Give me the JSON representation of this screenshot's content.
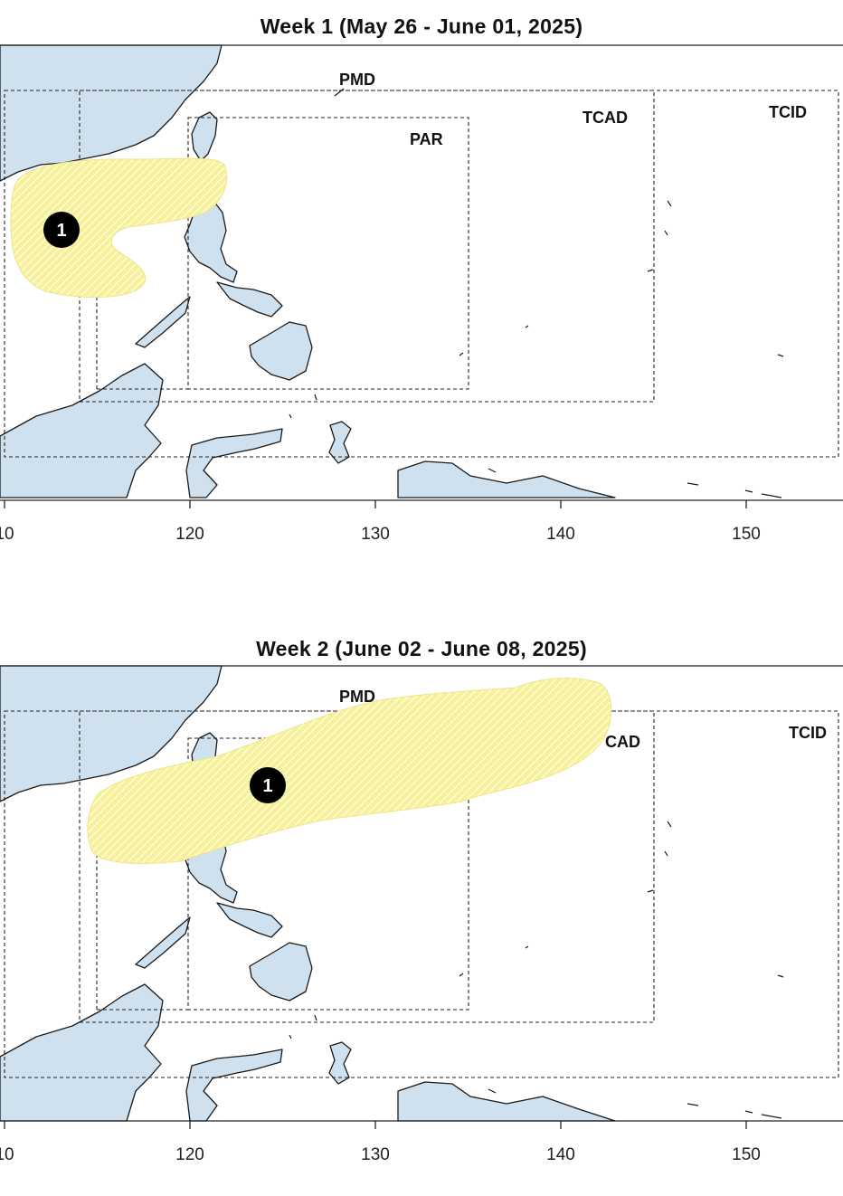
{
  "panels": [
    {
      "title": "Week 1 (May 26 - June 01, 2025)",
      "labels": {
        "pmd": "PMD",
        "par": "PAR",
        "tcad": "TCAD",
        "tcid": "TCID"
      },
      "areas": [
        {
          "marker": "1"
        }
      ],
      "x_ticks": [
        "10",
        "120",
        "130",
        "140",
        "150"
      ]
    },
    {
      "title": "Week 2 (June 02 - June 08, 2025)",
      "labels": {
        "pmd": "PMD",
        "cad": "CAD",
        "tcid": "TCID"
      },
      "areas": [
        {
          "marker": "1"
        }
      ],
      "x_ticks": [
        "10",
        "120",
        "130",
        "140",
        "150"
      ]
    }
  ],
  "colors": {
    "land": "#cfe1ee",
    "area": "#f5f08a",
    "ocean": "#ffffff"
  }
}
